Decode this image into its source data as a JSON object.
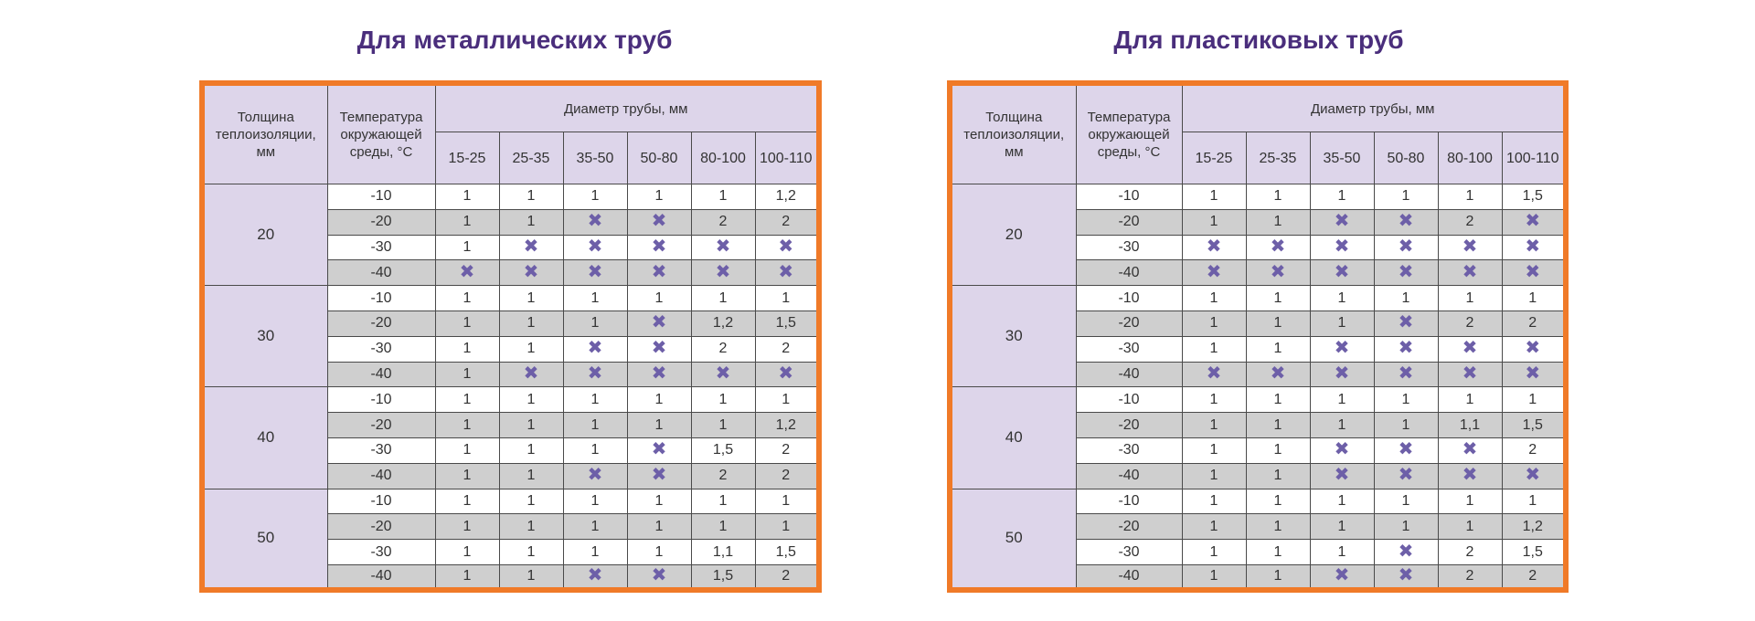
{
  "left": {
    "title": "Для металлических труб",
    "header": {
      "thickness": "Толщина теплоизоляции, мм",
      "temperature": "Температура окружающей среды, °С",
      "diameter": "Диаметр трубы, мм",
      "diameters": [
        "15-25",
        "25-35",
        "35-50",
        "50-80",
        "80-100",
        "100-110"
      ]
    },
    "groups": [
      {
        "thickness": "20",
        "rows": [
          {
            "temp": "-10",
            "values": [
              "1",
              "1",
              "1",
              "1",
              "1",
              "1,2"
            ]
          },
          {
            "temp": "-20",
            "values": [
              "1",
              "1",
              "✖",
              "✖",
              "2",
              "2"
            ]
          },
          {
            "temp": "-30",
            "values": [
              "1",
              "✖",
              "✖",
              "✖",
              "✖",
              "✖"
            ]
          },
          {
            "temp": "-40",
            "values": [
              "✖",
              "✖",
              "✖",
              "✖",
              "✖",
              "✖"
            ]
          }
        ]
      },
      {
        "thickness": "30",
        "rows": [
          {
            "temp": "-10",
            "values": [
              "1",
              "1",
              "1",
              "1",
              "1",
              "1"
            ]
          },
          {
            "temp": "-20",
            "values": [
              "1",
              "1",
              "1",
              "✖",
              "1,2",
              "1,5"
            ]
          },
          {
            "temp": "-30",
            "values": [
              "1",
              "1",
              "✖",
              "✖",
              "2",
              "2"
            ]
          },
          {
            "temp": "-40",
            "values": [
              "1",
              "✖",
              "✖",
              "✖",
              "✖",
              "✖"
            ]
          }
        ]
      },
      {
        "thickness": "40",
        "rows": [
          {
            "temp": "-10",
            "values": [
              "1",
              "1",
              "1",
              "1",
              "1",
              "1"
            ]
          },
          {
            "temp": "-20",
            "values": [
              "1",
              "1",
              "1",
              "1",
              "1",
              "1,2"
            ]
          },
          {
            "temp": "-30",
            "values": [
              "1",
              "1",
              "1",
              "✖",
              "1,5",
              "2"
            ]
          },
          {
            "temp": "-40",
            "values": [
              "1",
              "1",
              "✖",
              "✖",
              "2",
              "2"
            ]
          }
        ]
      },
      {
        "thickness": "50",
        "rows": [
          {
            "temp": "-10",
            "values": [
              "1",
              "1",
              "1",
              "1",
              "1",
              "1"
            ]
          },
          {
            "temp": "-20",
            "values": [
              "1",
              "1",
              "1",
              "1",
              "1",
              "1"
            ]
          },
          {
            "temp": "-30",
            "values": [
              "1",
              "1",
              "1",
              "1",
              "1,1",
              "1,5"
            ]
          },
          {
            "temp": "-40",
            "values": [
              "1",
              "1",
              "✖",
              "✖",
              "1,5",
              "2"
            ]
          }
        ]
      }
    ]
  },
  "right": {
    "title": "Для пластиковых труб",
    "header": {
      "thickness": "Толщина теплоизоляции, мм",
      "temperature": "Температура окружающей среды, °С",
      "diameter": "Диаметр трубы, мм",
      "diameters": [
        "15-25",
        "25-35",
        "35-50",
        "50-80",
        "80-100",
        "100-110"
      ]
    },
    "groups": [
      {
        "thickness": "20",
        "rows": [
          {
            "temp": "-10",
            "values": [
              "1",
              "1",
              "1",
              "1",
              "1",
              "1,5"
            ]
          },
          {
            "temp": "-20",
            "values": [
              "1",
              "1",
              "✖",
              "✖",
              "2",
              "✖"
            ]
          },
          {
            "temp": "-30",
            "values": [
              "✖",
              "✖",
              "✖",
              "✖",
              "✖",
              "✖"
            ]
          },
          {
            "temp": "-40",
            "values": [
              "✖",
              "✖",
              "✖",
              "✖",
              "✖",
              "✖"
            ]
          }
        ]
      },
      {
        "thickness": "30",
        "rows": [
          {
            "temp": "-10",
            "values": [
              "1",
              "1",
              "1",
              "1",
              "1",
              "1"
            ]
          },
          {
            "temp": "-20",
            "values": [
              "1",
              "1",
              "1",
              "✖",
              "2",
              "2"
            ]
          },
          {
            "temp": "-30",
            "values": [
              "1",
              "1",
              "✖",
              "✖",
              "✖",
              "✖"
            ]
          },
          {
            "temp": "-40",
            "values": [
              "✖",
              "✖",
              "✖",
              "✖",
              "✖",
              "✖"
            ]
          }
        ]
      },
      {
        "thickness": "40",
        "rows": [
          {
            "temp": "-10",
            "values": [
              "1",
              "1",
              "1",
              "1",
              "1",
              "1"
            ]
          },
          {
            "temp": "-20",
            "values": [
              "1",
              "1",
              "1",
              "1",
              "1,1",
              "1,5"
            ]
          },
          {
            "temp": "-30",
            "values": [
              "1",
              "1",
              "✖",
              "✖",
              "✖",
              "2"
            ]
          },
          {
            "temp": "-40",
            "values": [
              "1",
              "1",
              "✖",
              "✖",
              "✖",
              "✖"
            ]
          }
        ]
      },
      {
        "thickness": "50",
        "rows": [
          {
            "temp": "-10",
            "values": [
              "1",
              "1",
              "1",
              "1",
              "1",
              "1"
            ]
          },
          {
            "temp": "-20",
            "values": [
              "1",
              "1",
              "1",
              "1",
              "1",
              "1,2"
            ]
          },
          {
            "temp": "-30",
            "values": [
              "1",
              "1",
              "1",
              "✖",
              "2",
              "1,5"
            ]
          },
          {
            "temp": "-40",
            "values": [
              "1",
              "1",
              "✖",
              "✖",
              "2",
              "2"
            ]
          }
        ]
      }
    ]
  },
  "colors": {
    "title": "#4a2e7c",
    "frame": "#f07a28",
    "header_bg": "#ddd5ea",
    "stripe": "#cfcfcf",
    "cross": "#6d5fa8"
  }
}
